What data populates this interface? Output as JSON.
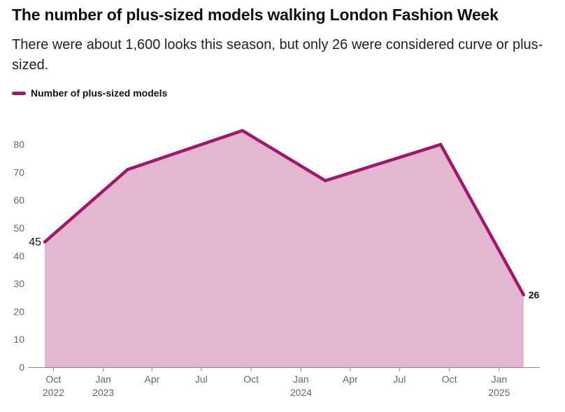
{
  "header": {
    "title": "The number of plus-sized models walking London Fashion Week",
    "subtitle": "There were  about 1,600 looks this season, but only 26 were considered curve or plus-sized."
  },
  "legend": {
    "label": "Number of plus-sized models"
  },
  "colors": {
    "line": "#a3176a",
    "area": "#e3b6d1",
    "axis": "#888888"
  },
  "chart_data": {
    "type": "area",
    "title": "The number of plus-sized models walking London Fashion Week",
    "subtitle": "There were  about 1,600 looks this season, but only 26 were considered curve or plus-sized.",
    "xlabel": "",
    "ylabel": "",
    "ylim": [
      0,
      90
    ],
    "grid": false,
    "legend_position": "top-left",
    "series": [
      {
        "name": "Number of plus-sized models",
        "points": [
          {
            "x": "2022-09-15",
            "y": 45
          },
          {
            "x": "2023-02-15",
            "y": 71
          },
          {
            "x": "2023-09-15",
            "y": 85
          },
          {
            "x": "2024-02-15",
            "y": 67
          },
          {
            "x": "2024-09-15",
            "y": 80
          },
          {
            "x": "2025-02-15",
            "y": 26
          }
        ]
      }
    ],
    "y_ticks": [
      "0",
      "10",
      "20",
      "30",
      "40",
      "50",
      "60",
      "70",
      "80"
    ],
    "x_ticks": [
      {
        "date": "2022-10-01",
        "line1": "Oct",
        "line2": "2022"
      },
      {
        "date": "2023-01-01",
        "line1": "Jan",
        "line2": "2023"
      },
      {
        "date": "2023-04-01",
        "line1": "Apr",
        "line2": ""
      },
      {
        "date": "2023-07-01",
        "line1": "Jul",
        "line2": ""
      },
      {
        "date": "2023-10-01",
        "line1": "Oct",
        "line2": ""
      },
      {
        "date": "2024-01-01",
        "line1": "Jan",
        "line2": "2024"
      },
      {
        "date": "2024-04-01",
        "line1": "Apr",
        "line2": ""
      },
      {
        "date": "2024-07-01",
        "line1": "Jul",
        "line2": ""
      },
      {
        "date": "2024-10-01",
        "line1": "Oct",
        "line2": ""
      },
      {
        "date": "2025-01-01",
        "line1": "Jan",
        "line2": "2025"
      }
    ],
    "annotations": {
      "start_label": "45",
      "end_label": "26"
    }
  }
}
